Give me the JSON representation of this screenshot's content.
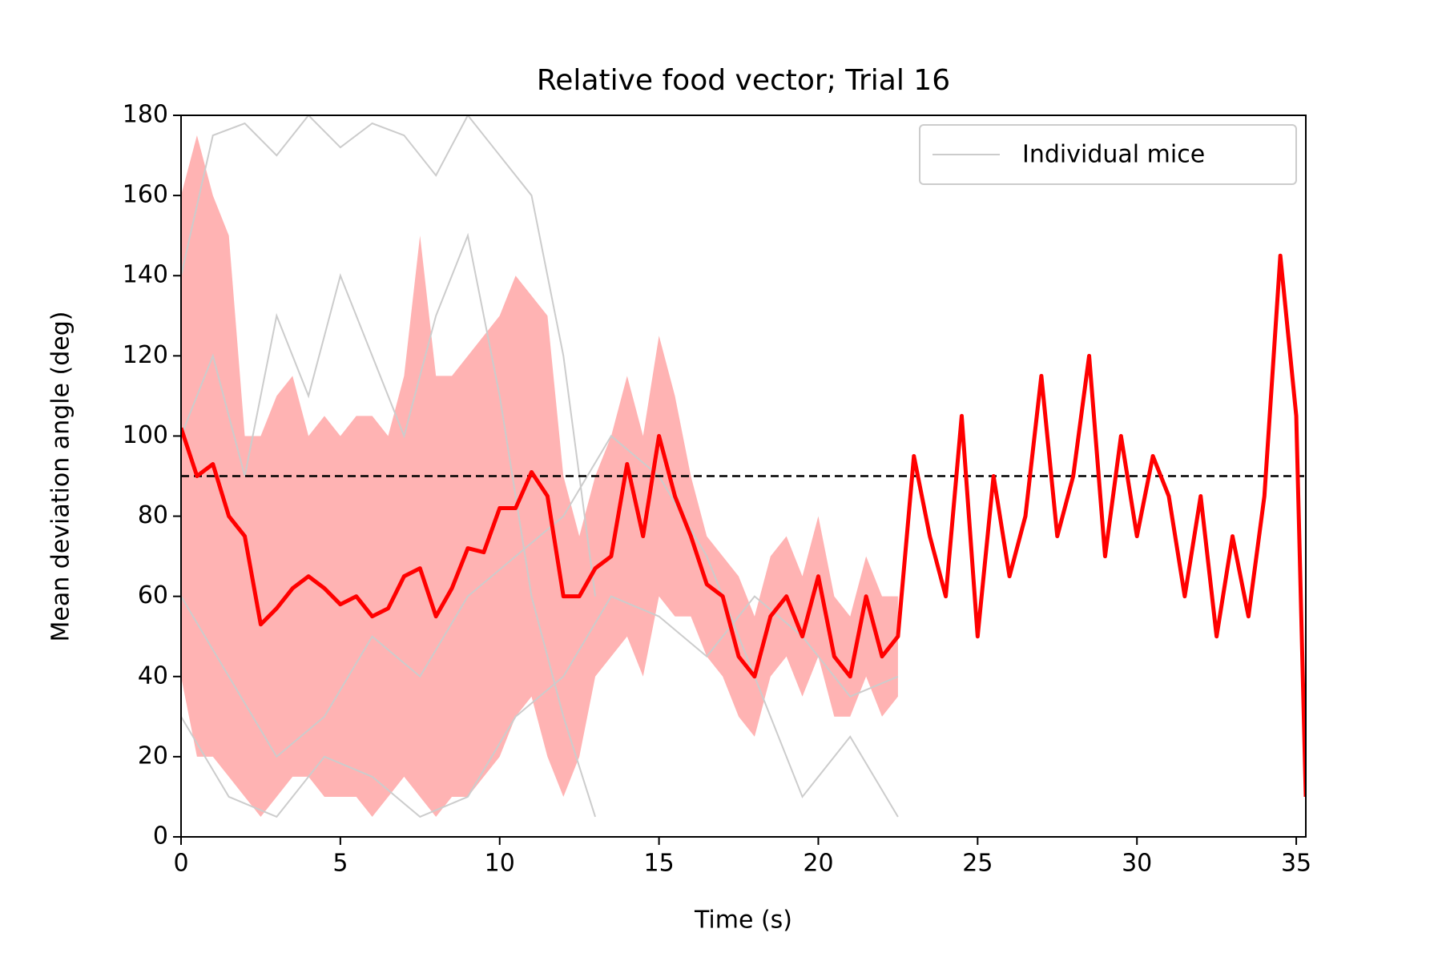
{
  "chart_data": {
    "type": "line",
    "title": "Relative food vector; Trial 16",
    "x_label": "Time (s)",
    "y_label": "Mean deviation angle (deg)",
    "xlim": [
      0,
      35.3
    ],
    "xticks": [
      0,
      5,
      10,
      15,
      20,
      25,
      30,
      35
    ],
    "ylim": [
      0,
      180
    ],
    "yticks": [
      0,
      20,
      40,
      60,
      80,
      100,
      120,
      140,
      160,
      180
    ],
    "legend": "upper right",
    "x": [
      0,
      0.5,
      1,
      1.5,
      2,
      2.5,
      3,
      3.5,
      4,
      4.5,
      5,
      5.5,
      6,
      6.5,
      7,
      7.5,
      8,
      8.5,
      9,
      9.5,
      10,
      10.5,
      11,
      11.5,
      12,
      12.5,
      13,
      13.5,
      14,
      14.5,
      15,
      15.5,
      16,
      16.5,
      17,
      17.5,
      18,
      18.5,
      19,
      19.5,
      20,
      20.5,
      21,
      21.5,
      22,
      22.5,
      23,
      23.5,
      24,
      24.5,
      25,
      25.5,
      26,
      26.5,
      27,
      27.5,
      28,
      28.5,
      29,
      29.5,
      30,
      30.5,
      31,
      31.5,
      32,
      32.5,
      33,
      33.5,
      34,
      34.5,
      35,
      35.3
    ],
    "series": [
      {
        "color": "#ff0000",
        "values": [
          102,
          90,
          93,
          80,
          75,
          53,
          57,
          62,
          65,
          62,
          58,
          60,
          55,
          57,
          65,
          67,
          55,
          62,
          72,
          71,
          82,
          82,
          91,
          85,
          60,
          60,
          67,
          70,
          93,
          75,
          100,
          85,
          75,
          63,
          60,
          45,
          40,
          55,
          60,
          50,
          65,
          45,
          40,
          60,
          45,
          50,
          95,
          75,
          60,
          105,
          50,
          90,
          65,
          80,
          115,
          75,
          90,
          120,
          70,
          100,
          75,
          95,
          85,
          60,
          85,
          50,
          75,
          55,
          85,
          145,
          105,
          10
        ]
      }
    ],
    "band": {
      "color": "#ffb3b3",
      "upper": [
        160,
        175,
        160,
        150,
        100,
        100,
        110,
        115,
        100,
        105,
        100,
        105,
        105,
        100,
        115,
        150,
        115,
        115,
        120,
        125,
        130,
        140,
        135,
        130,
        90,
        75,
        90,
        100,
        115,
        100,
        125,
        110,
        90,
        75,
        70,
        65,
        55,
        70,
        75,
        65,
        80,
        60,
        55,
        70,
        60,
        60,
        null,
        null,
        null,
        null,
        null,
        null,
        null,
        null,
        null,
        null,
        null,
        null,
        null,
        null,
        null,
        null,
        null,
        null,
        null,
        null,
        null,
        null,
        null,
        null,
        null,
        null
      ],
      "lower": [
        40,
        20,
        20,
        15,
        10,
        5,
        10,
        15,
        15,
        10,
        10,
        10,
        5,
        10,
        15,
        10,
        5,
        10,
        10,
        15,
        20,
        30,
        35,
        20,
        10,
        20,
        40,
        45,
        50,
        40,
        60,
        55,
        55,
        45,
        40,
        30,
        25,
        40,
        45,
        35,
        45,
        30,
        30,
        40,
        30,
        35,
        null,
        null,
        null,
        null,
        null,
        null,
        null,
        null,
        null,
        null,
        null,
        null,
        null,
        null,
        null,
        null,
        null,
        null,
        null,
        null,
        null,
        null,
        null,
        null,
        null,
        null
      ]
    },
    "individual": {
      "name": "Individual mice",
      "color": "#cccccc",
      "lines": [
        {
          "x": [
            0,
            1,
            2,
            3,
            4,
            5,
            6,
            7,
            8,
            9,
            10,
            11,
            12,
            13
          ],
          "values": [
            140,
            175,
            178,
            170,
            180,
            172,
            178,
            175,
            165,
            180,
            170,
            160,
            120,
            60
          ]
        },
        {
          "x": [
            0,
            1.5,
            3,
            4.5,
            6,
            7.5,
            9,
            10.5,
            12,
            13.5,
            15,
            16.5,
            18,
            19.5,
            21,
            22.5
          ],
          "values": [
            30,
            10,
            5,
            20,
            15,
            5,
            10,
            30,
            40,
            60,
            55,
            45,
            60,
            50,
            35,
            40
          ]
        },
        {
          "x": [
            0,
            1.5,
            3,
            4.5,
            6,
            7.5,
            9,
            10.5,
            12,
            13.5,
            15,
            16.5,
            18,
            19.5,
            21,
            22.5
          ],
          "values": [
            60,
            40,
            20,
            30,
            50,
            40,
            60,
            70,
            80,
            100,
            90,
            70,
            40,
            10,
            25,
            5
          ]
        },
        {
          "x": [
            0,
            1,
            2,
            3,
            4,
            5,
            6,
            7,
            8,
            9,
            10,
            11,
            12,
            13
          ],
          "values": [
            100,
            120,
            90,
            130,
            110,
            140,
            120,
            100,
            130,
            150,
            110,
            60,
            30,
            5
          ]
        }
      ]
    },
    "hline": {
      "value": 90,
      "color": "#000000",
      "dashed": true
    }
  }
}
